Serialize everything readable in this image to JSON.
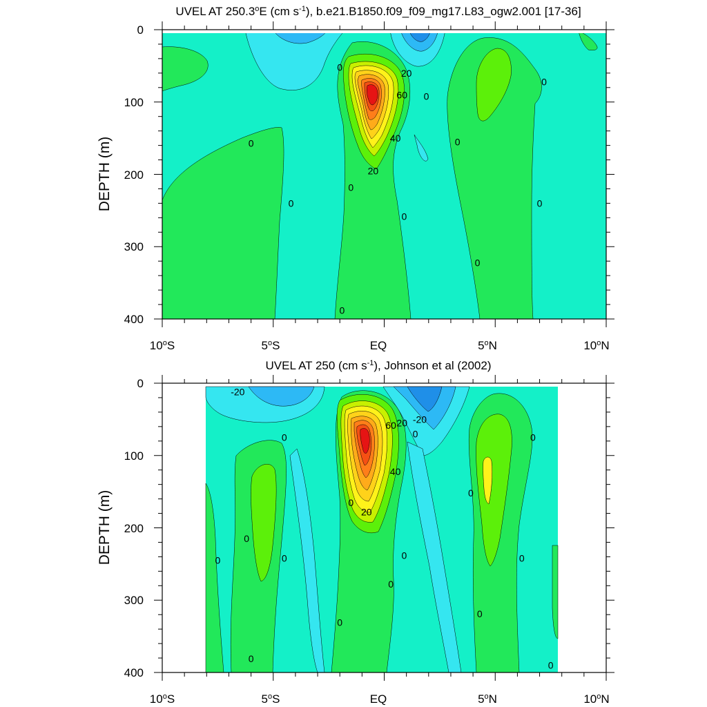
{
  "figure": {
    "colors": {
      "neg_deep": "#1f8fe8",
      "neg_mid": "#2db9f5",
      "neg_light": "#35e6f0",
      "zero_band": "#14f0c8",
      "pos_1": "#22e85a",
      "pos_2": "#5cf00a",
      "pos_3": "#c8f000",
      "pos_4": "#fff21a",
      "pos_5": "#ffd21a",
      "pos_6": "#ffab1a",
      "pos_7": "#ff7e1a",
      "pos_8": "#f55014",
      "pos_9": "#e61414"
    }
  },
  "chart_data": [
    {
      "type": "contour",
      "title_parts": [
        "UVEL AT 250.3",
        "o",
        "E (cm s",
        "-1",
        "), b.e21.B1850.f09_f09_mg17.L83_ogw2.001 [17-36]"
      ],
      "xlabel": "",
      "ylabel": "DEPTH (m)",
      "x_ticks": [
        "10",
        "5",
        "EQ",
        "5",
        "10"
      ],
      "x_tick_suffix": [
        "S",
        "S",
        "",
        "N",
        "N"
      ],
      "x_tick_degree": [
        "o",
        "o",
        "",
        "o",
        "o"
      ],
      "x_tick_values": [
        -10,
        -5,
        0,
        5,
        10
      ],
      "xlim": [
        -10,
        10
      ],
      "y_ticks": [
        "0",
        "100",
        "200",
        "300",
        "400"
      ],
      "y_tick_values": [
        0,
        100,
        200,
        300,
        400
      ],
      "ylim": [
        0,
        400
      ],
      "y_inverted": true,
      "data_x_range": [
        -10,
        10
      ],
      "jet_core": {
        "lat": 0,
        "depth": 95,
        "max_cms": 70
      },
      "contour_labels": [
        {
          "text": "0",
          "lat": -2.0,
          "depth": 52
        },
        {
          "text": "20",
          "lat": 1.0,
          "depth": 60
        },
        {
          "text": "60",
          "lat": 0.8,
          "depth": 90
        },
        {
          "text": "0",
          "lat": 1.9,
          "depth": 92
        },
        {
          "text": "0",
          "lat": -6.0,
          "depth": 157
        },
        {
          "text": "40",
          "lat": 0.5,
          "depth": 150
        },
        {
          "text": "0",
          "lat": 3.3,
          "depth": 155
        },
        {
          "text": "0",
          "lat": 7.2,
          "depth": 72
        },
        {
          "text": "20",
          "lat": -0.5,
          "depth": 195
        },
        {
          "text": "0",
          "lat": -1.5,
          "depth": 218
        },
        {
          "text": "0",
          "lat": -4.2,
          "depth": 240
        },
        {
          "text": "0",
          "lat": 7.0,
          "depth": 240
        },
        {
          "text": "0",
          "lat": 0.9,
          "depth": 258
        },
        {
          "text": "0",
          "lat": 4.2,
          "depth": 322
        },
        {
          "text": "0",
          "lat": -1.9,
          "depth": 388
        }
      ]
    },
    {
      "type": "contour",
      "title_parts": [
        "UVEL AT 250 (cm s",
        "-1",
        "), Johnson et al (2002)"
      ],
      "xlabel": "",
      "ylabel": "DEPTH (m)",
      "x_ticks": [
        "10",
        "5",
        "EQ",
        "5",
        "10"
      ],
      "x_tick_suffix": [
        "S",
        "S",
        "",
        "N",
        "N"
      ],
      "x_tick_degree": [
        "o",
        "o",
        "",
        "o",
        "o"
      ],
      "x_tick_values": [
        -10,
        -5,
        0,
        5,
        10
      ],
      "xlim": [
        -10,
        10
      ],
      "y_ticks": [
        "0",
        "100",
        "200",
        "300",
        "400"
      ],
      "y_tick_values": [
        0,
        100,
        200,
        300,
        400
      ],
      "ylim": [
        0,
        400
      ],
      "y_inverted": true,
      "data_x_range": [
        -8,
        8.2
      ],
      "jet_core": {
        "lat": -0.2,
        "depth": 72,
        "max_cms": 70
      },
      "contour_labels": [
        {
          "text": "-20",
          "lat": -6.6,
          "depth": 12
        },
        {
          "text": "60",
          "lat": 0.3,
          "depth": 58
        },
        {
          "text": "20",
          "lat": 0.8,
          "depth": 55
        },
        {
          "text": "-20",
          "lat": 1.6,
          "depth": 50
        },
        {
          "text": "0",
          "lat": 1.4,
          "depth": 70
        },
        {
          "text": "0",
          "lat": -4.5,
          "depth": 75
        },
        {
          "text": "0",
          "lat": 6.7,
          "depth": 75
        },
        {
          "text": "40",
          "lat": 0.5,
          "depth": 122
        },
        {
          "text": "0",
          "lat": 3.9,
          "depth": 152
        },
        {
          "text": "0",
          "lat": -1.5,
          "depth": 165
        },
        {
          "text": "20",
          "lat": -0.8,
          "depth": 178
        },
        {
          "text": "0",
          "lat": -6.2,
          "depth": 215
        },
        {
          "text": "0",
          "lat": -4.5,
          "depth": 242
        },
        {
          "text": "0",
          "lat": 0.9,
          "depth": 238
        },
        {
          "text": "0",
          "lat": 6.2,
          "depth": 242
        },
        {
          "text": "0",
          "lat": -7.5,
          "depth": 245
        },
        {
          "text": "0",
          "lat": 0.3,
          "depth": 278
        },
        {
          "text": "0",
          "lat": -2.0,
          "depth": 331
        },
        {
          "text": "0",
          "lat": 4.3,
          "depth": 319
        },
        {
          "text": "0",
          "lat": -6.0,
          "depth": 381
        },
        {
          "text": "0",
          "lat": 7.5,
          "depth": 390
        }
      ]
    }
  ]
}
